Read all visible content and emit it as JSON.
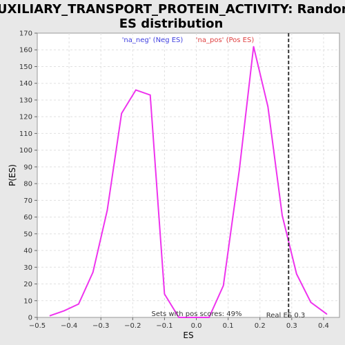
{
  "chart_data": {
    "type": "line",
    "title_line1": "AUXILIARY_TRANSPORT_PROTEIN_ACTIVITY: Random",
    "title_line2": "ES distribution",
    "xlabel": "ES",
    "ylabel": "P(ES)",
    "xlim": [
      -0.5,
      0.45
    ],
    "ylim": [
      0,
      170
    ],
    "xticks": [
      -0.5,
      -0.4,
      -0.3,
      -0.2,
      -0.1,
      0.0,
      0.1,
      0.2,
      0.3,
      0.4
    ],
    "xtick_labels": [
      "−0.5",
      "−0.4",
      "−0.3",
      "−0.2",
      "−0.1",
      "0.0",
      "0.1",
      "0.2",
      "0.3",
      "0.4"
    ],
    "yticks": [
      0,
      10,
      20,
      30,
      40,
      50,
      60,
      70,
      80,
      90,
      100,
      110,
      120,
      130,
      140,
      150,
      160,
      170
    ],
    "grid": true,
    "line_color": "#ee33ee",
    "series": [
      {
        "x": [
          -0.46,
          -0.415,
          -0.37,
          -0.325,
          -0.28,
          -0.235,
          -0.19,
          -0.145,
          -0.1,
          -0.055,
          -0.01,
          0.04,
          0.085,
          0.135,
          0.18,
          0.225,
          0.27,
          0.315,
          0.36,
          0.41
        ],
        "y": [
          1,
          4,
          8,
          27,
          64,
          122,
          136,
          133,
          14,
          0,
          0,
          0,
          19,
          88,
          162,
          126,
          61,
          26,
          9,
          2
        ]
      }
    ],
    "legend": [
      {
        "label": "'na_neg' (Neg ES)",
        "color": "#4040e0"
      },
      {
        "label": "'na_pos' (Pos ES)",
        "color": "#e04040"
      }
    ],
    "legend_placement": "top-center",
    "reference_line": {
      "x": 0.29,
      "label": "Real ES 0.3"
    },
    "annotation": "Sets with pos scores: 49%"
  }
}
